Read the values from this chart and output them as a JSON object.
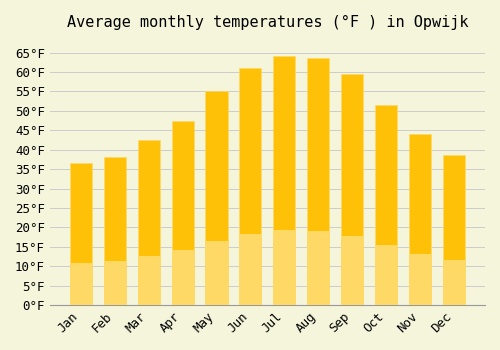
{
  "title": "Average monthly temperatures (°F ) in Opwijk",
  "months": [
    "Jan",
    "Feb",
    "Mar",
    "Apr",
    "May",
    "Jun",
    "Jul",
    "Aug",
    "Sep",
    "Oct",
    "Nov",
    "Dec"
  ],
  "values": [
    36.5,
    38.0,
    42.5,
    47.5,
    55.0,
    61.0,
    64.0,
    63.5,
    59.5,
    51.5,
    44.0,
    38.5
  ],
  "bar_color_top": "#FFC107",
  "bar_color_bottom": "#FFD966",
  "bar_edge_color": "#E6A800",
  "background_color": "#F5F5DC",
  "grid_color": "#CCCCCC",
  "ylim": [
    0,
    68
  ],
  "yticks": [
    0,
    5,
    10,
    15,
    20,
    25,
    30,
    35,
    40,
    45,
    50,
    55,
    60,
    65
  ],
  "title_fontsize": 11,
  "tick_fontsize": 9
}
